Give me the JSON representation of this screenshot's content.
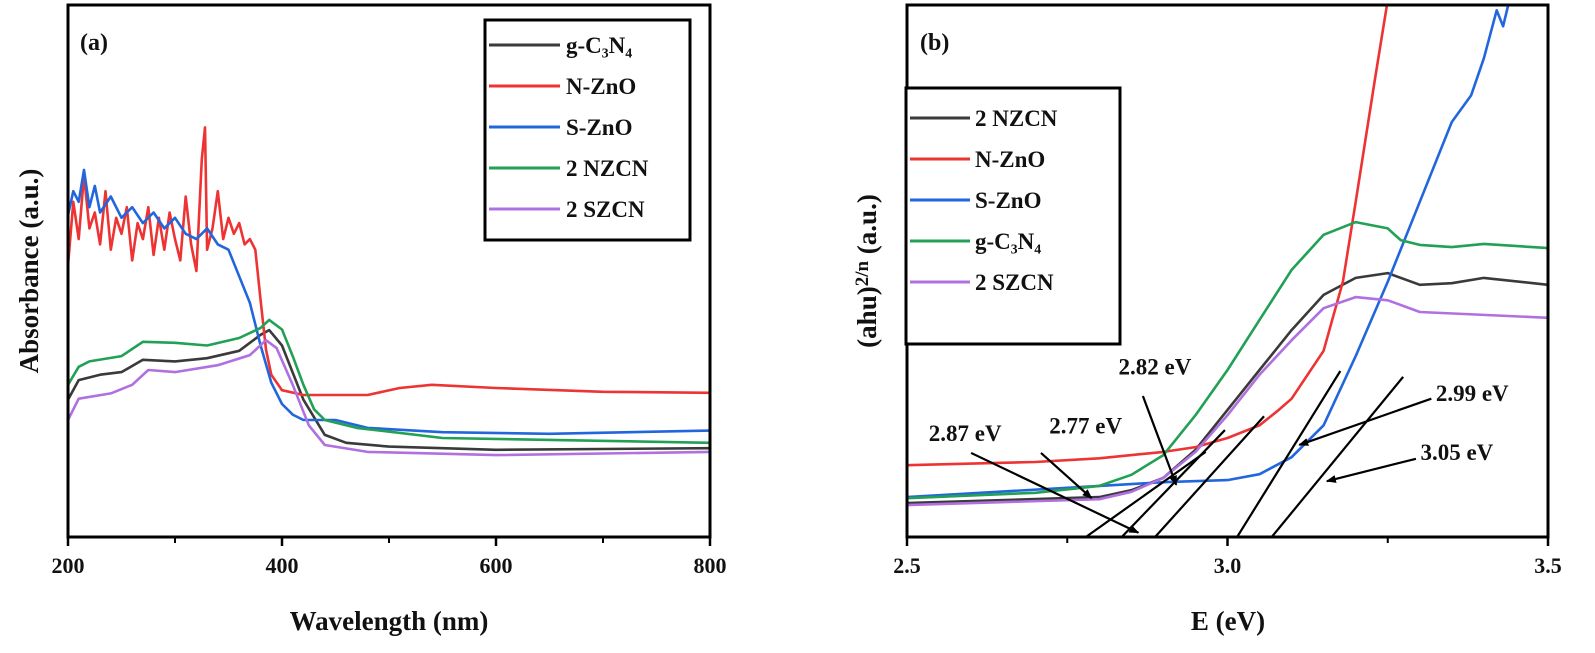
{
  "chart_data": [
    {
      "type": "line",
      "panel_label": "(a)",
      "xlabel": "Wavelength (nm)",
      "ylabel": "Absorbance (a.u.)",
      "xlim": [
        200,
        800
      ],
      "ylim": [
        0,
        100
      ],
      "y_units": "arbitrary",
      "xticks": [
        "200",
        "400",
        "600",
        "800"
      ],
      "xtick_values": [
        200,
        400,
        600,
        800
      ],
      "minor_xticks": [
        300,
        500,
        700
      ],
      "grid": false,
      "legend_placement": "top-right",
      "series": [
        {
          "name": "g-C₃N₄",
          "color": "#3a3a3a",
          "x": [
            200,
            210,
            230,
            250,
            270,
            300,
            330,
            360,
            380,
            388,
            400,
            420,
            440,
            460,
            500,
            600,
            800
          ],
          "y": [
            25.8,
            29.5,
            30.5,
            31,
            33.3,
            33,
            33.6,
            35,
            38,
            38.9,
            36,
            25.8,
            19.2,
            17.7,
            17,
            16.4,
            16.7
          ]
        },
        {
          "name": "N-ZnO",
          "color": "#ee3333",
          "x": [
            200,
            205,
            210,
            215,
            220,
            225,
            230,
            235,
            240,
            245,
            250,
            255,
            260,
            265,
            270,
            275,
            280,
            285,
            290,
            295,
            300,
            305,
            310,
            315,
            320,
            325,
            328,
            330,
            335,
            340,
            345,
            350,
            355,
            360,
            365,
            370,
            375,
            380,
            385,
            390,
            400,
            420,
            480,
            510,
            540,
            600,
            700,
            800
          ],
          "y": [
            51,
            63,
            56,
            68,
            58,
            61,
            55,
            65,
            54,
            60,
            57,
            62,
            52,
            59,
            56,
            62,
            53,
            60,
            54,
            61,
            56,
            52,
            64,
            55,
            50,
            71,
            77,
            54,
            58,
            65,
            56,
            60,
            57,
            59,
            55,
            56,
            54,
            44.5,
            35.2,
            30.5,
            27.6,
            26.7,
            26.7,
            28,
            28.6,
            28,
            27.3,
            27.1
          ]
        },
        {
          "name": "S-ZnO",
          "color": "#2266dd",
          "x": [
            200,
            205,
            210,
            215,
            220,
            225,
            230,
            240,
            250,
            260,
            270,
            280,
            290,
            300,
            310,
            320,
            330,
            340,
            350,
            360,
            370,
            380,
            390,
            400,
            410,
            420,
            450,
            480,
            550,
            650,
            800
          ],
          "y": [
            60.5,
            65,
            63,
            69,
            62,
            66,
            61,
            64,
            60,
            62,
            59,
            61,
            58,
            60,
            57,
            56,
            58,
            55,
            54,
            49,
            44,
            36,
            29,
            25,
            23,
            22,
            22,
            20.5,
            19.7,
            19.4,
            20
          ]
        },
        {
          "name": "2 NZCN",
          "color": "#22a055",
          "x": [
            200,
            210,
            220,
            250,
            270,
            300,
            330,
            360,
            380,
            388,
            400,
            410,
            420,
            430,
            440,
            470,
            550,
            800
          ],
          "y": [
            28.6,
            32,
            33,
            34,
            36.7,
            36.5,
            36,
            37.4,
            39.3,
            40.8,
            39,
            34,
            28.6,
            24,
            22,
            20.5,
            18.6,
            17.7
          ]
        },
        {
          "name": "2 SZCN",
          "color": "#b070e0",
          "x": [
            200,
            210,
            240,
            260,
            275,
            300,
            340,
            370,
            385,
            395,
            410,
            425,
            440,
            480,
            600,
            800
          ],
          "y": [
            22,
            26,
            27,
            28.6,
            31.4,
            31,
            32.3,
            34.2,
            37,
            35.5,
            28.6,
            21,
            17.3,
            16,
            15.4,
            16
          ]
        }
      ]
    },
    {
      "type": "line",
      "panel_label": "(b)",
      "xlabel": "E (eV)",
      "ylabel": {
        "base": "(ahu)",
        "sup": "2/n",
        "unit": " (a.u.)"
      },
      "xlim": [
        2.5,
        3.5
      ],
      "ylim": [
        0,
        100
      ],
      "y_units": "arbitrary",
      "xticks": [
        "2.5",
        "3.0",
        "3.5"
      ],
      "xtick_values": [
        2.5,
        3.0,
        3.5
      ],
      "minor_xticks": [
        2.75,
        3.25
      ],
      "grid": false,
      "legend_placement": "top-left",
      "series": [
        {
          "name": "2 NZCN",
          "color": "#3a3a3a",
          "x": [
            2.5,
            2.8,
            2.85,
            2.9,
            2.95,
            3.0,
            3.05,
            3.1,
            3.15,
            3.2,
            3.25,
            3.3,
            3.35,
            3.4,
            3.5
          ],
          "y": [
            6.4,
            7.5,
            8.8,
            11.1,
            16.4,
            23.9,
            31.4,
            38.9,
            45.5,
            48.7,
            49.6,
            47.4,
            47.7,
            48.7,
            47.4
          ]
        },
        {
          "name": "N-ZnO",
          "color": "#ee3333",
          "x": [
            2.5,
            2.7,
            2.8,
            2.9,
            2.95,
            3.0,
            3.05,
            3.08,
            3.1,
            3.15,
            3.18,
            3.2,
            3.23,
            3.25
          ],
          "y": [
            13.5,
            14.1,
            14.8,
            16,
            16.9,
            18.6,
            21,
            23.9,
            26,
            35,
            48,
            63,
            86,
            101
          ]
        },
        {
          "name": "S-ZnO",
          "color": "#2266dd",
          "x": [
            2.5,
            2.8,
            2.9,
            3.0,
            3.05,
            3.1,
            3.15,
            3.2,
            3.25,
            3.3,
            3.35,
            3.38,
            3.4,
            3.42,
            3.43,
            3.44
          ],
          "y": [
            7.5,
            9.6,
            10.3,
            10.7,
            11.8,
            15,
            21,
            34,
            48,
            63,
            78,
            83,
            90,
            99,
            96,
            101
          ]
        },
        {
          "name": "g-C₃N₄",
          "color": "#22a055",
          "x": [
            2.5,
            2.7,
            2.8,
            2.85,
            2.9,
            2.95,
            3.0,
            3.05,
            3.1,
            3.15,
            3.2,
            3.25,
            3.27,
            3.3,
            3.35,
            3.4,
            3.5
          ],
          "y": [
            7.3,
            8.3,
            9.6,
            11.7,
            15.4,
            22.9,
            31.4,
            40.8,
            50.2,
            56.8,
            59.2,
            58,
            55.8,
            54.9,
            54.5,
            55.1,
            54.3
          ]
        },
        {
          "name": "2 SZCN",
          "color": "#b070e0",
          "x": [
            2.5,
            2.8,
            2.85,
            2.9,
            2.95,
            3.0,
            3.05,
            3.1,
            3.15,
            3.2,
            3.25,
            3.3,
            3.5
          ],
          "y": [
            6,
            7.1,
            8.5,
            11.1,
            16,
            22.9,
            30.5,
            37,
            43,
            45.1,
            44.5,
            42.3,
            41.2
          ]
        }
      ],
      "tangent_lines": [
        {
          "x": [
            2.779,
            2.966
          ],
          "y": [
            0,
            16
          ]
        },
        {
          "x": [
            2.835,
            2.996
          ],
          "y": [
            0,
            20.1
          ]
        },
        {
          "x": [
            2.887,
            3.057
          ],
          "y": [
            0,
            22.7
          ]
        },
        {
          "x": [
            3.015,
            3.176
          ],
          "y": [
            0,
            31.2
          ]
        },
        {
          "x": [
            3.069,
            3.274
          ],
          "y": [
            0,
            30.1
          ]
        }
      ],
      "annotations": [
        {
          "text": "2.87 eV",
          "x": 2.534,
          "y": 18.0,
          "arrow_from": [
            2.6,
            15.8
          ],
          "arrow_to": [
            2.861,
            0.8
          ]
        },
        {
          "text": "2.77 eV",
          "x": 2.722,
          "y": 19.5,
          "arrow_from": [
            2.709,
            15.8
          ],
          "arrow_to": [
            2.788,
            7.3
          ]
        },
        {
          "text": "2.82 eV",
          "x": 2.83,
          "y": 30.5,
          "arrow_from": [
            2.868,
            26.5
          ],
          "arrow_to": [
            2.92,
            9.8
          ]
        },
        {
          "text": "2.99 eV",
          "x": 3.325,
          "y": 25.6,
          "arrow_from": [
            3.318,
            26
          ],
          "arrow_to": [
            3.112,
            17.3
          ]
        },
        {
          "text": "3.05 eV",
          "x": 3.301,
          "y": 14.5,
          "arrow_from": [
            3.294,
            14.7
          ],
          "arrow_to": [
            3.155,
            10.5
          ]
        }
      ]
    }
  ]
}
